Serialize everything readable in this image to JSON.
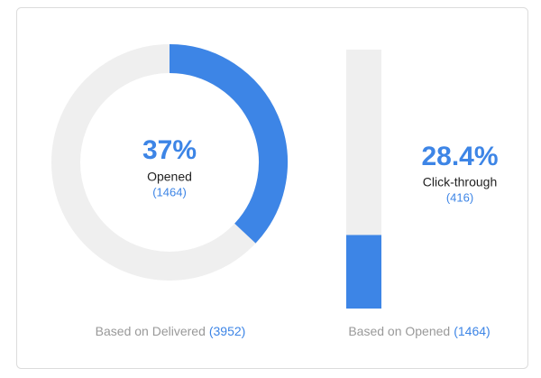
{
  "chart_data": [
    {
      "type": "donut",
      "values": [
        37
      ],
      "value_labels": [
        "37%"
      ],
      "ylim": [
        0,
        100
      ],
      "label": "Opened",
      "count_label": "(1464)",
      "footer": "Based on Delivered",
      "footer_count": "(3952)",
      "color": "#3d85e6",
      "track_color": "#efefef"
    },
    {
      "type": "bar",
      "values": [
        28.4
      ],
      "value_labels": [
        "28.4%"
      ],
      "ylim": [
        0,
        100
      ],
      "label": "Click-through",
      "count_label": "(416)",
      "footer": "Based on Opened",
      "footer_count": "(1464)",
      "color": "#3d85e6",
      "track_color": "#efefef"
    }
  ]
}
